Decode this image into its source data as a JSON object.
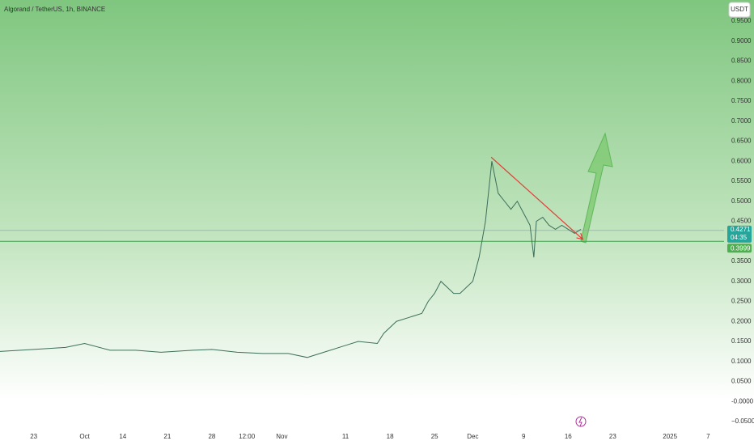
{
  "header": {
    "title": "Algorand / TetherUS, 1h, BINANCE",
    "currency": "USDT"
  },
  "chart_data": {
    "type": "line",
    "color": "#3d6e5a",
    "grid": false,
    "x": [
      -5.3,
      0,
      5,
      8,
      12,
      16,
      20,
      25,
      28,
      32,
      36,
      40,
      43,
      46,
      49,
      51,
      54,
      55,
      57,
      59,
      61,
      62,
      63,
      64,
      66,
      67,
      69,
      70,
      71,
      72,
      73,
      74,
      75,
      76,
      77,
      78,
      78.6,
      79,
      80,
      81,
      82,
      83,
      84,
      85,
      86
    ],
    "values": [
      0.125,
      0.13,
      0.135,
      0.145,
      0.128,
      0.128,
      0.123,
      0.128,
      0.13,
      0.123,
      0.12,
      0.12,
      0.11,
      0.125,
      0.14,
      0.15,
      0.145,
      0.17,
      0.2,
      0.21,
      0.22,
      0.25,
      0.27,
      0.3,
      0.27,
      0.27,
      0.3,
      0.36,
      0.45,
      0.6,
      0.52,
      0.5,
      0.48,
      0.5,
      0.47,
      0.44,
      0.36,
      0.45,
      0.46,
      0.44,
      0.43,
      0.44,
      0.43,
      0.42,
      0.43
    ],
    "xlim": [
      -5.3,
      108.5
    ],
    "xticks": [
      {
        "value": 0,
        "label": "23"
      },
      {
        "value": 8,
        "label": "Oct"
      },
      14,
      21,
      28,
      {
        "value": 33.5,
        "label": "12:00"
      },
      {
        "value": 39,
        "label": "Nov"
      },
      {
        "value": 49,
        "label": "11"
      },
      {
        "value": 56,
        "label": "18"
      },
      {
        "value": 63,
        "label": "25"
      },
      {
        "value": 69,
        "label": "Dec"
      },
      {
        "value": 77,
        "label": "9"
      },
      {
        "value": 84,
        "label": "16"
      },
      {
        "value": 91,
        "label": "23"
      },
      {
        "value": 100,
        "label": "2025"
      },
      {
        "value": 106,
        "label": "7"
      }
    ],
    "ylim": [
      -0.05,
      0.95
    ],
    "yticks": [
      {
        "value": 0.95,
        "label": "0.9500"
      },
      {
        "value": 0.9,
        "label": "0.9000"
      },
      {
        "value": 0.85,
        "label": "0.8500"
      },
      {
        "value": 0.8,
        "label": "0.8000"
      },
      {
        "value": 0.75,
        "label": "0.7500"
      },
      {
        "value": 0.7,
        "label": "0.7000"
      },
      {
        "value": 0.65,
        "label": "0.6500"
      },
      {
        "value": 0.6,
        "label": "0.6000"
      },
      {
        "value": 0.55,
        "label": "0.5500"
      },
      {
        "value": 0.5,
        "label": "0.5000"
      },
      {
        "value": 0.45,
        "label": "0.4500"
      },
      {
        "value": 0.35,
        "label": "0.3500"
      },
      {
        "value": 0.3,
        "label": "0.3000"
      },
      {
        "value": 0.25,
        "label": "0.2500"
      },
      {
        "value": 0.2,
        "label": "0.2000"
      },
      {
        "value": 0.15,
        "label": "0.1500"
      },
      {
        "value": 0.1,
        "label": "0.1000"
      },
      {
        "value": 0.05,
        "label": "0.0500"
      },
      {
        "value": 0,
        "label": "-0.0000"
      },
      {
        "value": -0.05,
        "label": "−0.0500"
      }
    ],
    "current_price": 0.4271,
    "countdown": "04:35",
    "support": 0.3999,
    "trendline": {
      "x": [
        71.9,
        86.3
      ],
      "values": [
        0.61,
        0.405
      ]
    }
  }
}
